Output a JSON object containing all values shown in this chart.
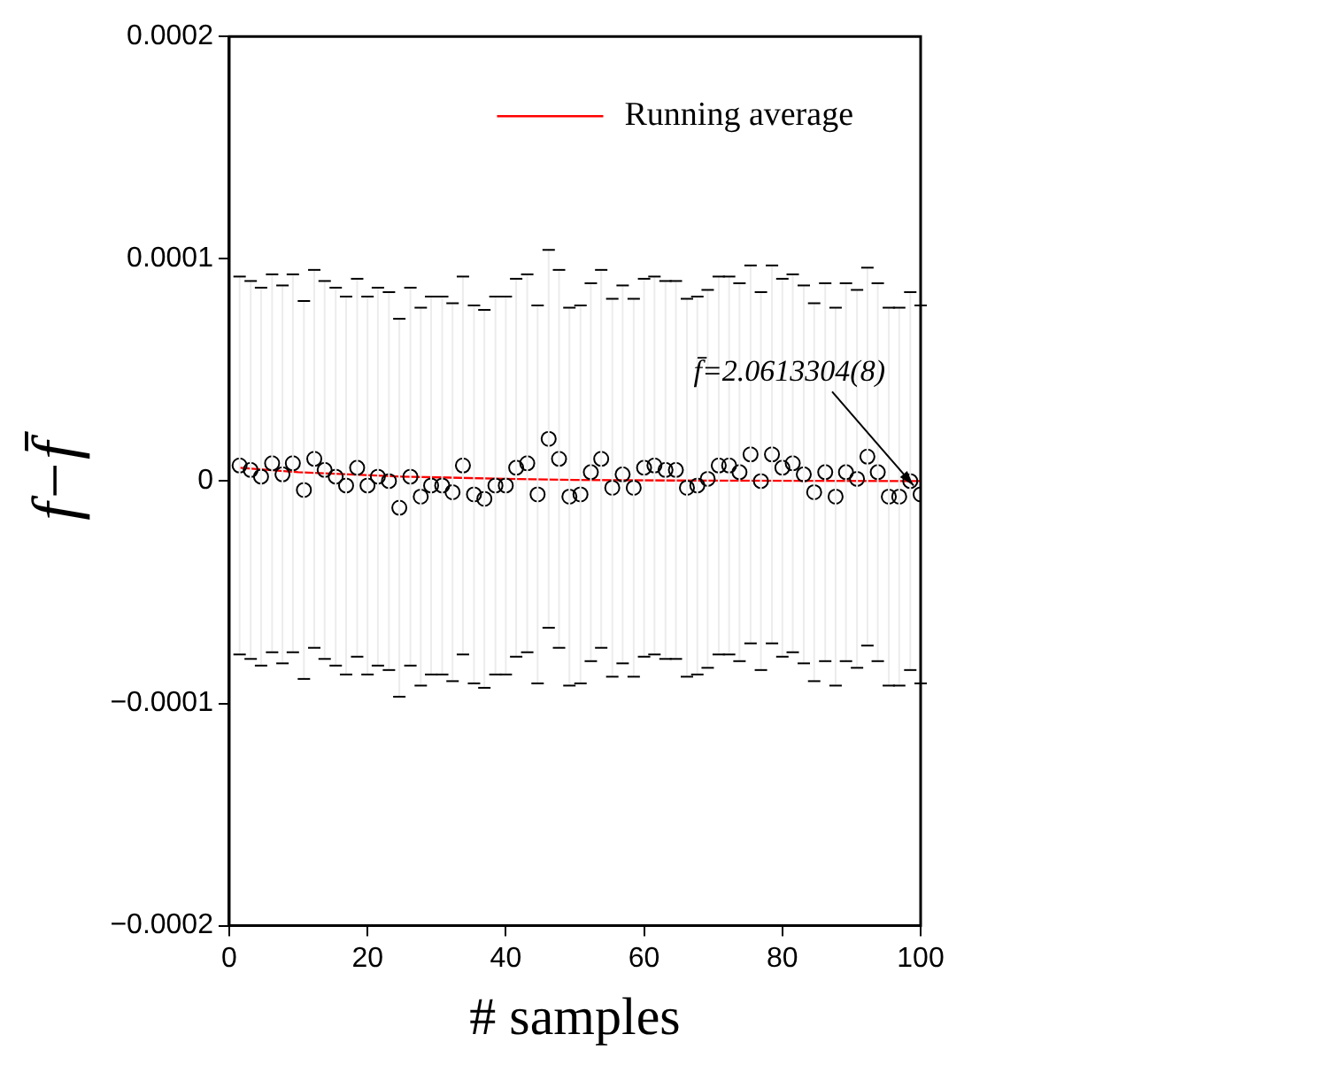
{
  "chart_data": {
    "type": "scatter",
    "xlabel": "# samples",
    "ylabel": "f−f̄",
    "xlim": [
      0,
      100
    ],
    "xticks": [
      0,
      20,
      40,
      60,
      80,
      100
    ],
    "ylim": [
      -0.0002,
      0.0002
    ],
    "yticks": [
      {
        "value": -0.0002,
        "label": "−0.0002"
      },
      {
        "value": -0.0001,
        "label": "−0.0001"
      },
      0,
      0.0001,
      0.0002
    ],
    "grid": false,
    "legend": "top right",
    "marker": "circle",
    "x": [
      1.5,
      3.1,
      4.6,
      6.2,
      7.7,
      9.2,
      10.8,
      12.3,
      13.8,
      15.4,
      16.9,
      18.5,
      20,
      21.5,
      23.1,
      24.6,
      26.2,
      27.7,
      29.2,
      30.8,
      32.3,
      33.8,
      35.4,
      36.9,
      38.5,
      40,
      41.5,
      43.1,
      44.6,
      46.2,
      47.7,
      49.2,
      50.8,
      52.3,
      53.8,
      55.4,
      56.9,
      58.5,
      60,
      61.5,
      63.1,
      64.6,
      66.2,
      67.7,
      69.2,
      70.8,
      72.3,
      73.8,
      75.4,
      76.9,
      78.5,
      80,
      81.5,
      83.1,
      84.6,
      86.2,
      87.7,
      89.2,
      90.8,
      92.3,
      93.8,
      95.4,
      96.9,
      98.5,
      100
    ],
    "series": [
      {
        "type": "scatter",
        "color": "#000000",
        "values": [
          7e-06,
          5e-06,
          2e-06,
          8e-06,
          3e-06,
          8e-06,
          -4e-06,
          1e-05,
          5e-06,
          2e-06,
          -2e-06,
          6e-06,
          -2e-06,
          2e-06,
          0,
          -1.2e-05,
          2e-06,
          -7e-06,
          -2e-06,
          -2e-06,
          -5e-06,
          7e-06,
          -6e-06,
          -8e-06,
          -2e-06,
          -2e-06,
          6e-06,
          8e-06,
          -6e-06,
          1.9e-05,
          1e-05,
          -7e-06,
          -6e-06,
          4e-06,
          1e-05,
          -3e-06,
          3e-06,
          -3e-06,
          6e-06,
          7e-06,
          5e-06,
          5e-06,
          -3e-06,
          -2e-06,
          1e-06,
          7e-06,
          7e-06,
          4e-06,
          1.2e-05,
          0,
          1.2e-05,
          6e-06,
          8e-06,
          3e-06,
          -5e-06,
          4e-06,
          -7e-06,
          4e-06,
          1e-06,
          1.1e-05,
          4e-06,
          -7e-06,
          -7e-06,
          0,
          -6e-06
        ],
        "errors": [
          8.5e-05,
          8.5e-05,
          8.5e-05,
          8.5e-05,
          8.5e-05,
          8.5e-05,
          8.5e-05,
          8.5e-05,
          8.5e-05,
          8.5e-05,
          8.5e-05,
          8.5e-05,
          8.5e-05,
          8.5e-05,
          8.5e-05,
          8.5e-05,
          8.5e-05,
          8.5e-05,
          8.5e-05,
          8.5e-05,
          8.5e-05,
          8.5e-05,
          8.5e-05,
          8.5e-05,
          8.5e-05,
          8.5e-05,
          8.5e-05,
          8.5e-05,
          8.5e-05,
          8.5e-05,
          8.5e-05,
          8.5e-05,
          8.5e-05,
          8.5e-05,
          8.5e-05,
          8.5e-05,
          8.5e-05,
          8.5e-05,
          8.5e-05,
          8.5e-05,
          8.5e-05,
          8.5e-05,
          8.5e-05,
          8.5e-05,
          8.5e-05,
          8.5e-05,
          8.5e-05,
          8.5e-05,
          8.5e-05,
          8.5e-05,
          8.5e-05,
          8.5e-05,
          8.5e-05,
          8.5e-05,
          8.5e-05,
          8.5e-05,
          8.5e-05,
          8.5e-05,
          8.5e-05,
          8.5e-05,
          8.5e-05,
          8.5e-05,
          8.5e-05,
          8.5e-05,
          8.5e-05
        ]
      },
      {
        "type": "line",
        "name": "Running average",
        "color": "#ff0000",
        "marker": "none",
        "line_style": "solid",
        "x": [
          1.5,
          10,
          25,
          40,
          50,
          70,
          100
        ],
        "values": [
          6e-06,
          4e-06,
          2e-06,
          1e-06,
          5e-07,
          2e-07,
          0
        ]
      }
    ],
    "annotations": [
      {
        "text": "f̄=2.0613304(8)",
        "x": 100,
        "y": -6e-06
      }
    ]
  }
}
